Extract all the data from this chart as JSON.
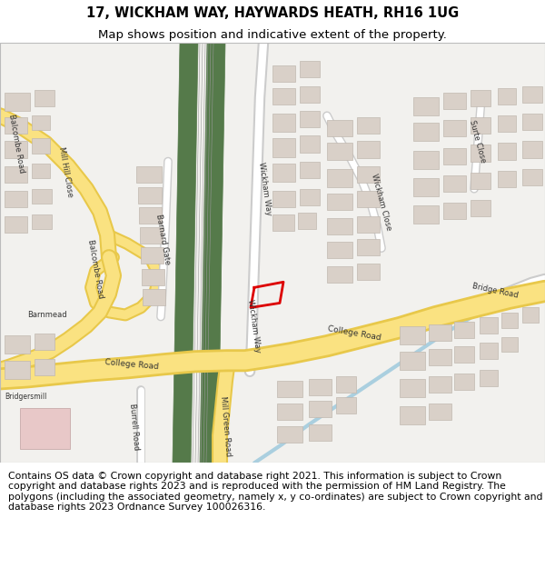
{
  "title_line1": "17, WICKHAM WAY, HAYWARDS HEATH, RH16 1UG",
  "title_line2": "Map shows position and indicative extent of the property.",
  "footer_text": "Contains OS data © Crown copyright and database right 2021. This information is subject to Crown copyright and database rights 2023 and is reproduced with the permission of HM Land Registry. The polygons (including the associated geometry, namely x, y co-ordinates) are subject to Crown copyright and database rights 2023 Ordnance Survey 100026316.",
  "title_fontsize": 10.5,
  "subtitle_fontsize": 9.5,
  "footer_fontsize": 7.8,
  "bg_color": "#ffffff",
  "title_color": "#000000",
  "fig_width": 6.0,
  "fig_height": 6.25,
  "dpi": 100,
  "map_bg": "#f2f1ee",
  "road_yellow_fill": "#fae281",
  "road_yellow_outline": "#e8c84a",
  "road_white_fill": "#ffffff",
  "road_white_outline": "#cccccc",
  "rail_green": "#557a4a",
  "rail_line": "#aaaaaa",
  "building_color": "#d9d0c8",
  "building_edge": "#c0b8b0",
  "water_blue": "#aacfdf",
  "plot_red": "#dd0000",
  "text_color": "#333333",
  "pink_building": "#e8c8c8"
}
